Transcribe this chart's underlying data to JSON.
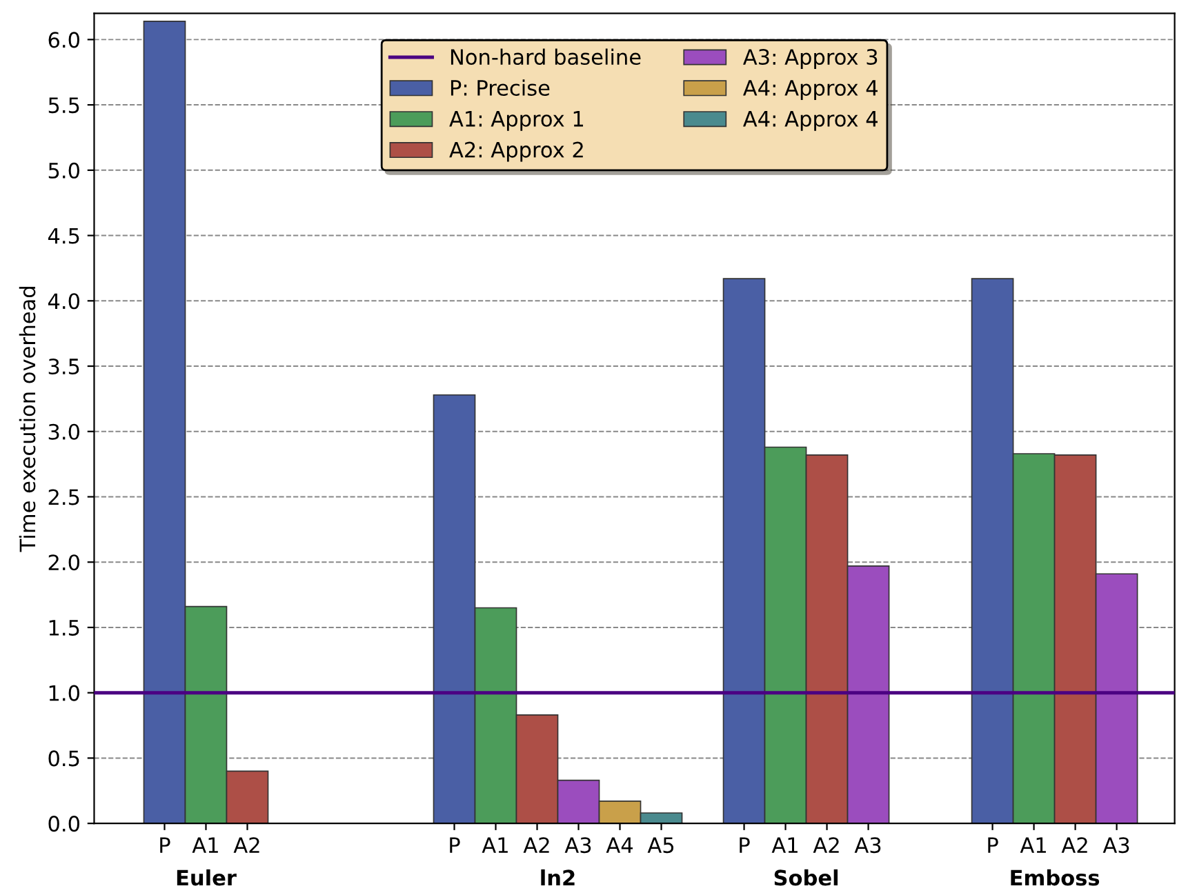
{
  "chart_data": {
    "type": "bar",
    "ylabel": "Time execution overhead",
    "categories": [
      "P",
      "A1",
      "A2",
      null,
      null,
      null,
      null,
      "P",
      "A1",
      "A2",
      "A3",
      "A4",
      "A5",
      null,
      "P",
      "A1",
      "A2",
      "A3",
      null,
      null,
      "P",
      "A1",
      "A2",
      "A3"
    ],
    "series": [
      {
        "name": "P: Precise",
        "color": "#4a5fa5",
        "values": [
          6.14,
          null,
          null,
          null,
          null,
          null,
          null,
          3.28,
          null,
          null,
          null,
          null,
          null,
          null,
          4.17,
          null,
          null,
          null,
          null,
          null,
          4.17,
          null,
          null,
          null
        ]
      },
      {
        "name": "A1: Approx 1",
        "color": "#4c9c5a",
        "values": [
          null,
          1.66,
          null,
          null,
          null,
          null,
          null,
          null,
          1.65,
          null,
          null,
          null,
          null,
          null,
          null,
          2.88,
          null,
          null,
          null,
          null,
          null,
          2.83,
          null,
          null
        ]
      },
      {
        "name": "A2: Approx 2",
        "color": "#ad4f47",
        "values": [
          null,
          null,
          0.4,
          null,
          null,
          null,
          null,
          null,
          null,
          0.83,
          null,
          null,
          null,
          null,
          null,
          null,
          2.82,
          null,
          null,
          null,
          null,
          null,
          2.82,
          null
        ]
      },
      {
        "name": "A3: Approx 3",
        "color": "#9b4dbe",
        "values": [
          null,
          null,
          null,
          null,
          null,
          null,
          null,
          null,
          null,
          null,
          0.33,
          null,
          null,
          null,
          null,
          null,
          null,
          1.97,
          null,
          null,
          null,
          null,
          null,
          1.91
        ]
      },
      {
        "name": "A4: Approx 4",
        "color": "#c9a04a",
        "values": [
          null,
          null,
          null,
          null,
          null,
          null,
          null,
          null,
          null,
          null,
          null,
          0.17,
          null,
          null,
          null,
          null,
          null,
          null,
          null,
          null,
          null,
          null,
          null,
          null
        ]
      },
      {
        "name": "A4: Approx 4",
        "color": "#4a8a8e",
        "values": [
          null,
          null,
          null,
          null,
          null,
          null,
          null,
          null,
          null,
          null,
          null,
          null,
          0.08,
          null,
          null,
          null,
          null,
          null,
          null,
          null,
          null,
          null,
          null,
          null
        ]
      }
    ],
    "ref_lines": [
      {
        "axis": "y",
        "value": 1.0,
        "label": "Non-hard baseline",
        "color": "#4b0082",
        "line_style": "solid"
      }
    ],
    "annotations": [
      "Euler",
      "ln2",
      "Sobel",
      "Emboss"
    ],
    "ylim": [
      0,
      6.2
    ],
    "yticks": [
      {
        "value": 0,
        "label": "0.0"
      },
      {
        "value": 0.5,
        "label": "0.5"
      },
      {
        "value": 1,
        "label": "1.0"
      },
      {
        "value": 1.5,
        "label": "1.5"
      },
      {
        "value": 2,
        "label": "2.0"
      },
      {
        "value": 2.5,
        "label": "2.5"
      },
      {
        "value": 3,
        "label": "3.0"
      },
      {
        "value": 3.5,
        "label": "3.5"
      },
      {
        "value": 4,
        "label": "4.0"
      },
      {
        "value": 4.5,
        "label": "4.5"
      },
      {
        "value": 5,
        "label": "5.0"
      },
      {
        "value": 5.5,
        "label": "5.5"
      },
      {
        "value": 6,
        "label": "6.0"
      }
    ],
    "grid": "y",
    "legend": "top"
  }
}
